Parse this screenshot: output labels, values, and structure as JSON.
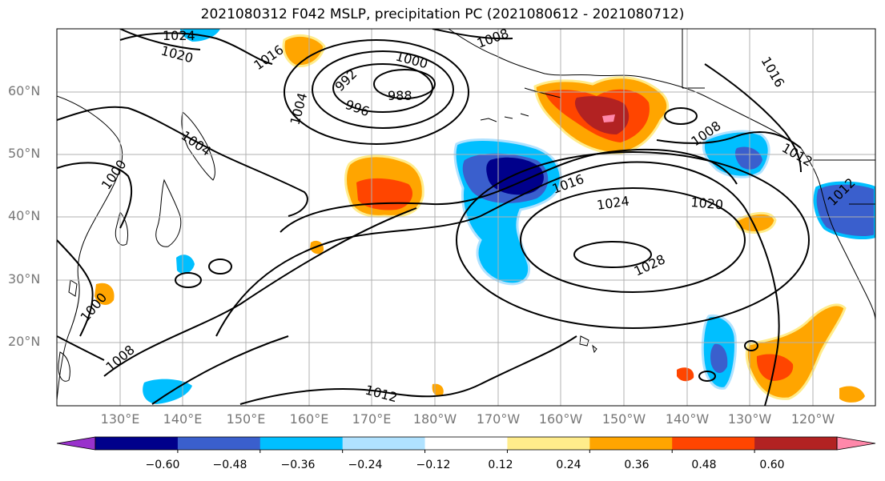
{
  "title": "2021080312 F042 MSLP, precipitation PC (2021080612 - 2021080712)",
  "lat_labels": [
    "60°N",
    "50°N",
    "40°N",
    "30°N",
    "20°N"
  ],
  "lon_labels": [
    "130°E",
    "140°E",
    "150°E",
    "160°E",
    "170°E",
    "180°W",
    "170°W",
    "160°W",
    "150°W",
    "140°W",
    "130°W",
    "120°W"
  ],
  "colorbar": {
    "colors": [
      "#9932cc",
      "#00008b",
      "#3a5fcd",
      "#00bfff",
      "#b0e2ff",
      "#ffffff",
      "#ffec8b",
      "#ffa500",
      "#ff4500",
      "#b22222",
      "#ff88aa"
    ],
    "labels": [
      "−0.60",
      "−0.48",
      "−0.36",
      "−0.24",
      "−0.12",
      "0.12",
      "0.24",
      "0.36",
      "0.48",
      "0.60"
    ]
  },
  "contour_labels": [
    {
      "text": "1024"
    },
    {
      "text": "1020"
    },
    {
      "text": "1016"
    },
    {
      "text": "1008"
    },
    {
      "text": "1000"
    },
    {
      "text": "992"
    },
    {
      "text": "988"
    },
    {
      "text": "996"
    },
    {
      "text": "1004"
    },
    {
      "text": "1016"
    },
    {
      "text": "1004"
    },
    {
      "text": "1000"
    },
    {
      "text": "1016"
    },
    {
      "text": "1008"
    },
    {
      "text": "1012"
    },
    {
      "text": "1024"
    },
    {
      "text": "1020"
    },
    {
      "text": "1028"
    },
    {
      "text": "1012"
    },
    {
      "text": "1000"
    },
    {
      "text": "1008"
    },
    {
      "text": "1012"
    }
  ]
}
